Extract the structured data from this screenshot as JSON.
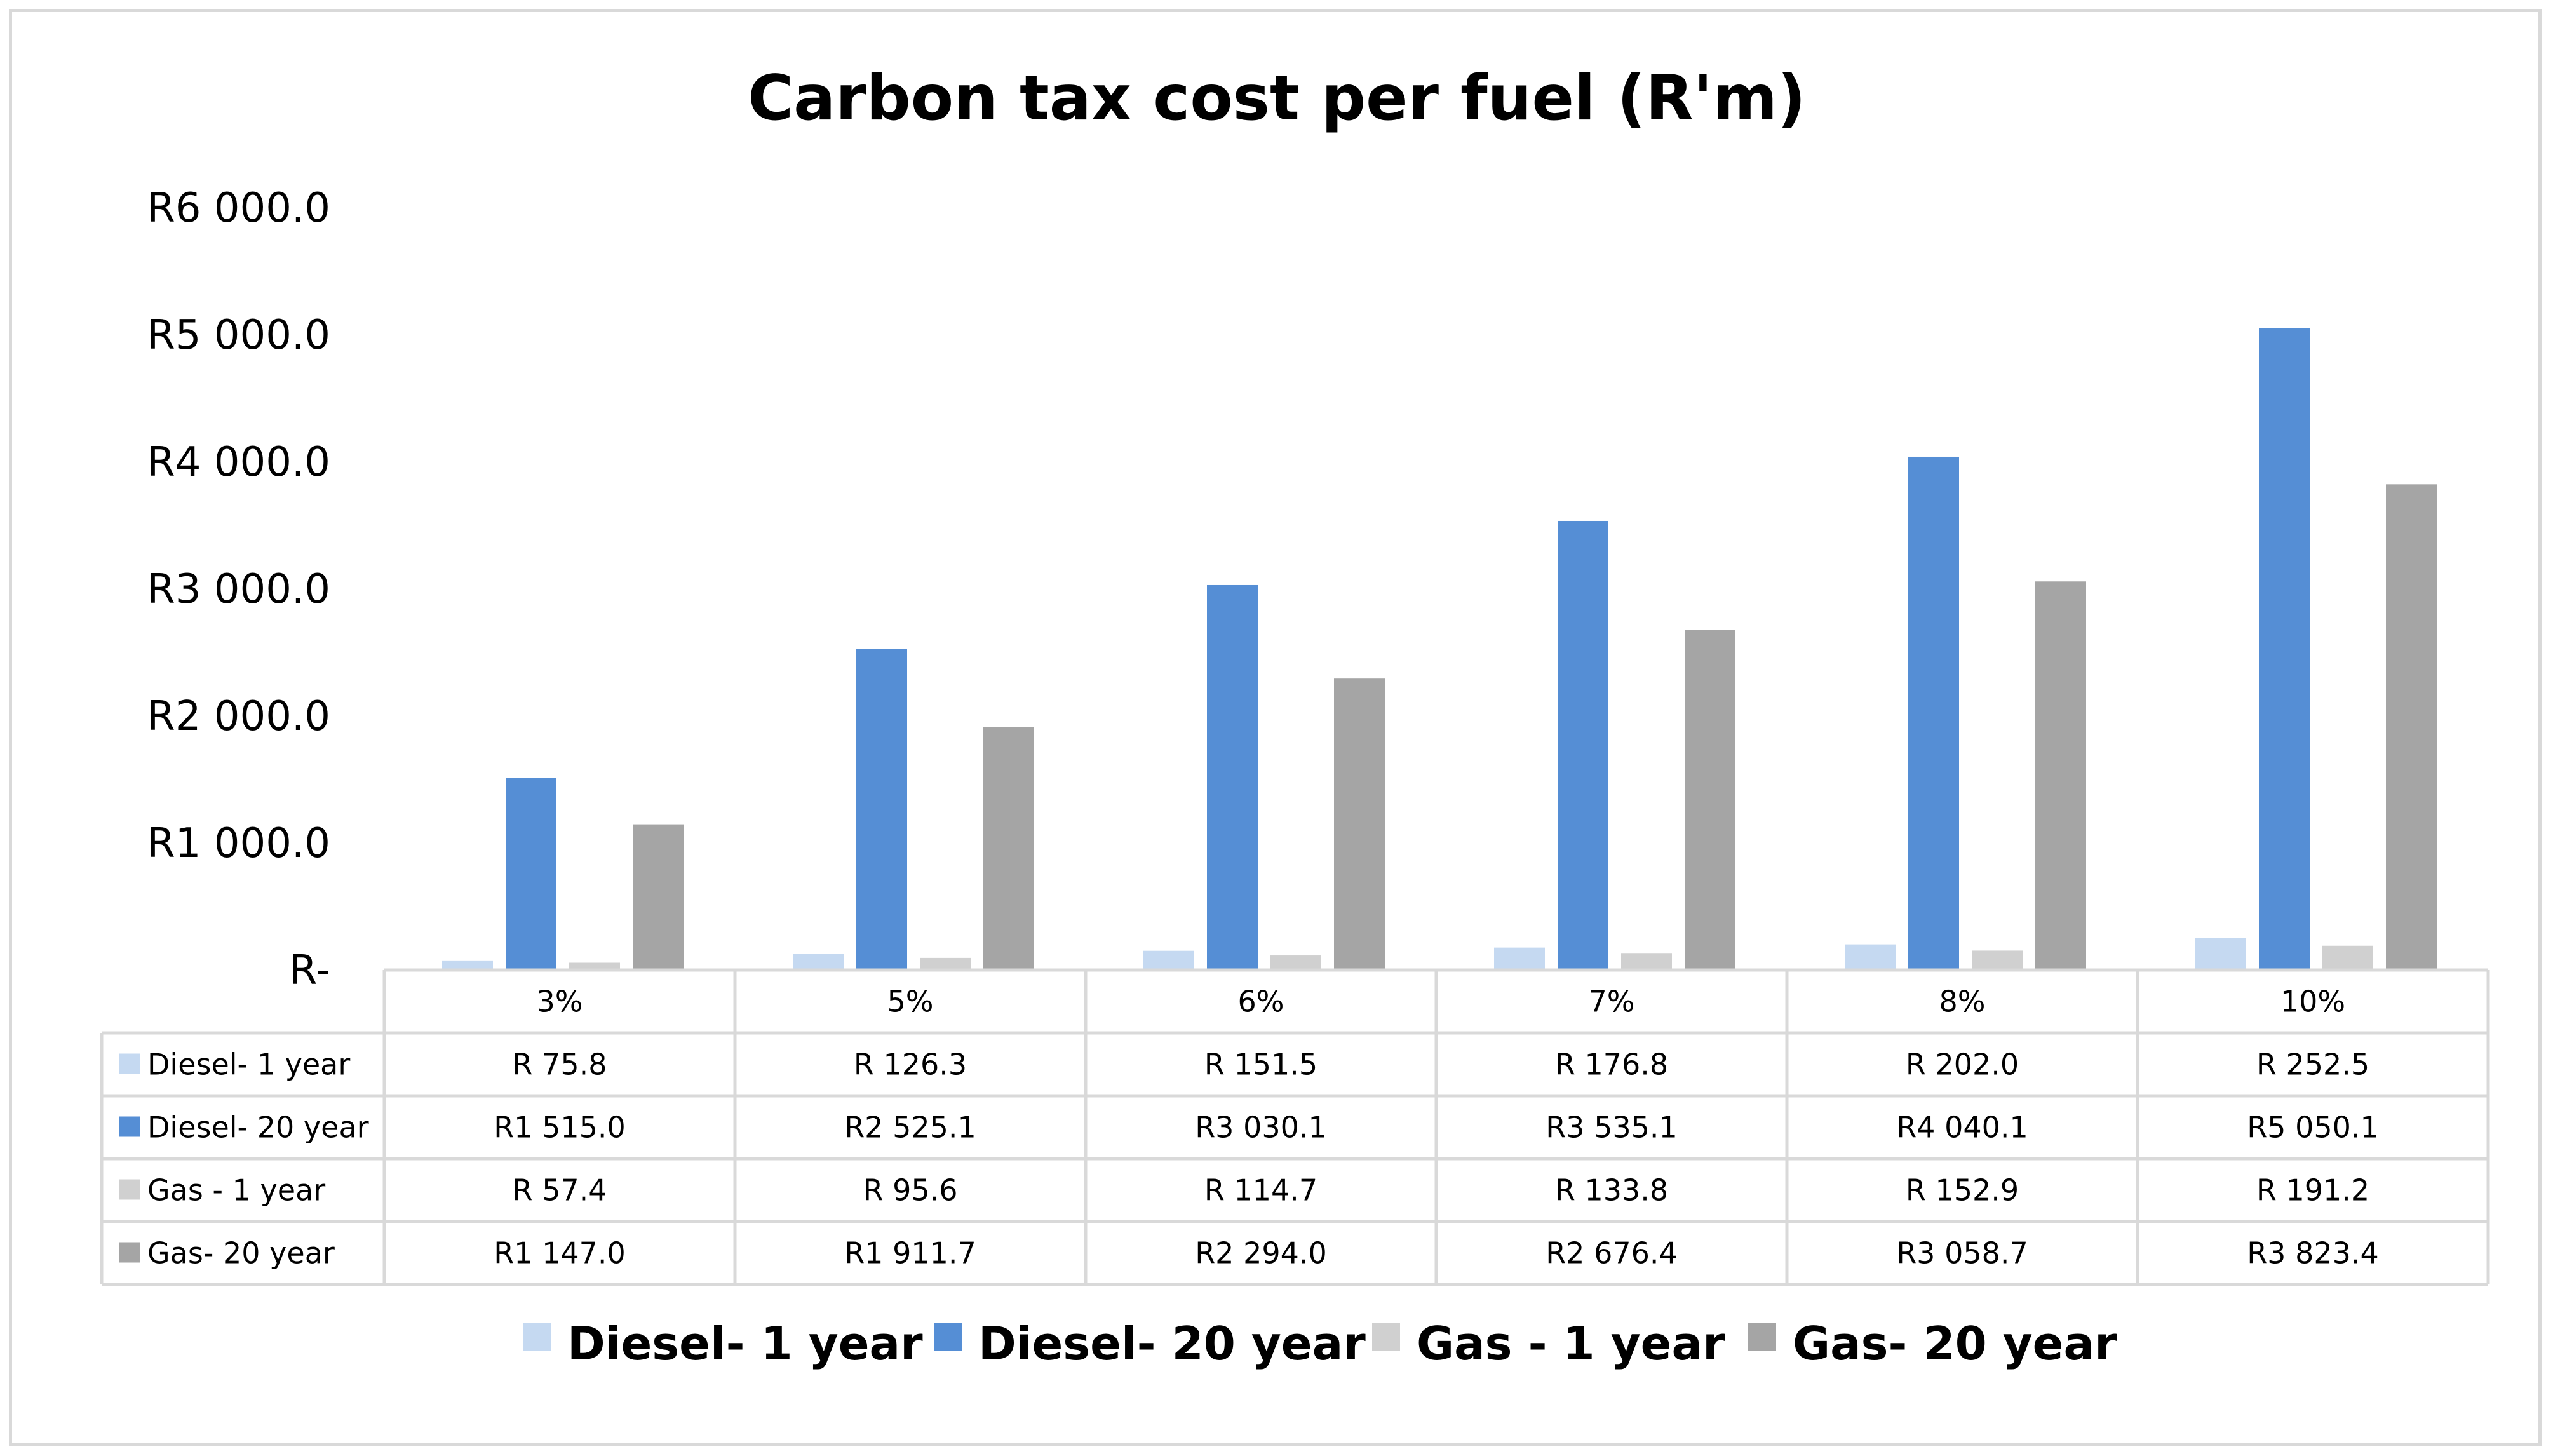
{
  "chart_data": {
    "type": "bar",
    "title": "Carbon tax cost per fuel (R'm)",
    "xlabel": "",
    "ylabel": "",
    "ylim": [
      0,
      6000
    ],
    "y_ticks": [
      {
        "value": 0,
        "label": "R-"
      },
      {
        "value": 1000,
        "label": "R1 000.0"
      },
      {
        "value": 2000,
        "label": "R2 000.0"
      },
      {
        "value": 3000,
        "label": "R3 000.0"
      },
      {
        "value": 4000,
        "label": "R4 000.0"
      },
      {
        "value": 5000,
        "label": "R5 000.0"
      },
      {
        "value": 6000,
        "label": "R6 000.0"
      }
    ],
    "categories": [
      "3%",
      "5%",
      "6%",
      "7%",
      "8%",
      "10%"
    ],
    "legend_position": "bottom",
    "data_table": true,
    "series": [
      {
        "name": "Diesel- 1 year",
        "color": "#c5d9f1",
        "values": [
          75.8,
          126.3,
          151.5,
          176.8,
          202.0,
          252.5
        ],
        "labels": [
          "R 75.8",
          "R 126.3",
          "R 151.5",
          "R 176.8",
          "R 202.0",
          "R 252.5"
        ]
      },
      {
        "name": "Diesel- 20 year",
        "color": "#558ed5",
        "values": [
          1515.0,
          2525.1,
          3030.1,
          3535.1,
          4040.1,
          5050.1
        ],
        "labels": [
          "R1 515.0",
          "R2 525.1",
          "R3 030.1",
          "R3 535.1",
          "R4 040.1",
          "R5 050.1"
        ]
      },
      {
        "name": "Gas - 1 year",
        "color": "#d0d0d0",
        "values": [
          57.4,
          95.6,
          114.7,
          133.8,
          152.9,
          191.2
        ],
        "labels": [
          "R 57.4",
          "R 95.6",
          "R 114.7",
          "R 133.8",
          "R 152.9",
          "R 191.2"
        ]
      },
      {
        "name": "Gas- 20 year",
        "color": "#a5a5a5",
        "values": [
          1147.0,
          1911.7,
          2294.0,
          2676.4,
          3058.7,
          3823.4
        ],
        "labels": [
          "R1 147.0",
          "R1 911.7",
          "R2 294.0",
          "R2 676.4",
          "R3 058.7",
          "R3 823.4"
        ]
      }
    ]
  }
}
